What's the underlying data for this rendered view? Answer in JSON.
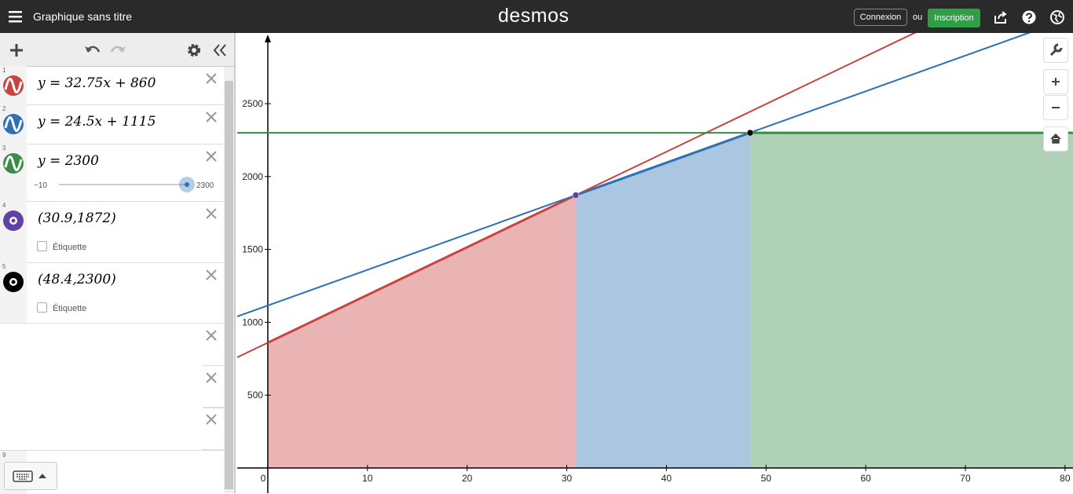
{
  "header": {
    "title": "Graphique sans titre",
    "logo": "desmos",
    "login": "Connexion",
    "or": "ou",
    "signup": "Inscription"
  },
  "expressions": [
    {
      "index": "1",
      "text": "y = 32.75x + 860"
    },
    {
      "index": "2",
      "text": "y = 24.5x + 1115"
    },
    {
      "index": "3",
      "text": "y = 2300",
      "slider": {
        "min": {
          "value": -10,
          "label": "−10"
        },
        "max": 2300,
        "value": 2300
      }
    },
    {
      "index": "4",
      "text": "(30.9,1872)",
      "checkbox": "Étiquette"
    },
    {
      "index": "5",
      "text": "(48.4,2300)",
      "checkbox": "Étiquette"
    }
  ],
  "last_row_index": "9",
  "chart_data": {
    "type": "function-plot",
    "xlim": [
      -3.07,
      80.8
    ],
    "ylim": [
      -173,
      2985
    ],
    "xticks": [
      0,
      10,
      20,
      30,
      40,
      50,
      60,
      70,
      80
    ],
    "yticks": [
      500,
      1000,
      1500,
      2000,
      2500
    ],
    "grid": false,
    "lines": [
      {
        "slope": 32.75,
        "intercept": 860,
        "color": "#c74440"
      },
      {
        "slope": 24.5,
        "intercept": 1115,
        "color": "#2d70b3"
      },
      {
        "slope": 0,
        "intercept": 2300,
        "color": "#388c46"
      }
    ],
    "regions": [
      {
        "line": 0,
        "from": 0,
        "to": 30.9
      },
      {
        "line": 1,
        "from": 30.9,
        "to": 48.4
      },
      {
        "line": 2,
        "from": 48.4
      }
    ],
    "points": [
      {
        "x": 30.9,
        "y": 1872,
        "color": "#6042a6"
      },
      {
        "x": 48.4,
        "y": 2300,
        "color": "#000000"
      }
    ]
  }
}
